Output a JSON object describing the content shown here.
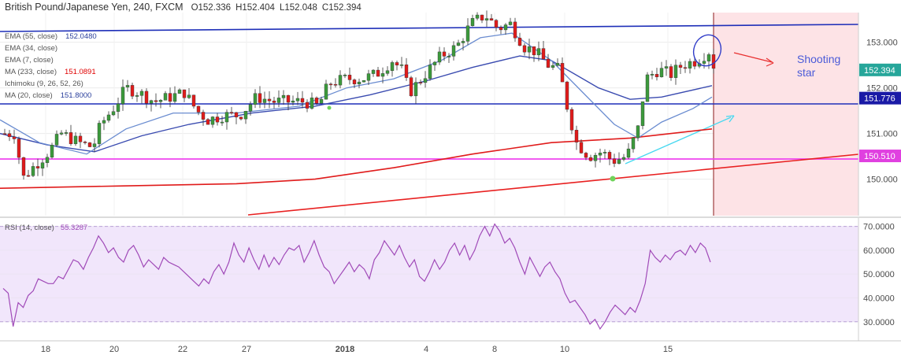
{
  "chart_data": [
    {
      "type": "candlestick",
      "header": {
        "symbol": "British Pound/Japanese Yen",
        "interval": "240",
        "source": "FXCM",
        "open": "O152.336",
        "high": "H152.404",
        "low": "L152.048",
        "close": "C152.394"
      },
      "indicators": [
        {
          "label": "EMA (55, close)",
          "value": "152.0480",
          "value_color": "#2a3f9c"
        },
        {
          "label": "EMA (34, close)",
          "value": "",
          "muted": true
        },
        {
          "label": "EMA (7, close)",
          "value": "",
          "muted": true
        },
        {
          "label": "MA (233, close)",
          "value": "151.0891",
          "value_color": "#e00000"
        },
        {
          "label": "Ichimoku (9, 26, 52, 26)",
          "value": "",
          "muted": true
        },
        {
          "label": "MA (20, close)",
          "value": "151.8000",
          "value_color": "#2a3f9c"
        }
      ],
      "ylim": [
        149.2,
        153.65
      ],
      "y_ticks": [
        "150.000",
        "151.000",
        "152.000",
        "153.000"
      ],
      "x_ticks": [
        "18",
        "20",
        "22",
        "27",
        "2018",
        "4",
        "8",
        "10",
        "15"
      ],
      "price_labels": [
        {
          "text": "152.394",
          "value": 152.394,
          "color": "#26a69a"
        },
        {
          "text": "151.776",
          "value": 151.776,
          "color": "#1a1aa6"
        },
        {
          "text": "150.510",
          "value": 150.51,
          "color": "#e040e0"
        }
      ],
      "annotation_text": [
        "Shooting",
        "star"
      ],
      "colors": {
        "up": "#3c9a3c",
        "down": "#e01b1b",
        "annotation": "#4a5bd8"
      }
    },
    {
      "type": "line",
      "label": "RSI (14, close)",
      "value": "55.3287",
      "ylim": [
        22,
        73.5
      ],
      "y_ticks": [
        "30.0000",
        "40.0000",
        "50.0000",
        "60.0000",
        "70.0000"
      ],
      "band": [
        30,
        70
      ],
      "values": [
        44,
        42,
        28,
        38,
        36,
        41,
        43,
        48,
        47,
        46,
        46,
        49,
        48,
        52,
        56,
        55,
        52,
        57,
        61,
        66,
        63,
        59,
        61,
        57,
        55,
        60,
        62,
        58,
        53,
        56,
        54,
        52,
        57,
        55,
        54,
        53,
        51,
        49,
        47,
        45,
        48,
        46,
        51,
        54,
        50,
        55,
        63,
        58,
        55,
        61,
        56,
        52,
        58,
        53,
        57,
        54,
        58,
        61,
        60,
        62,
        55,
        59,
        64,
        58,
        53,
        51,
        46,
        49,
        52,
        55,
        51,
        54,
        52,
        48,
        56,
        59,
        64,
        61,
        58,
        62,
        57,
        53,
        56,
        49,
        47,
        51,
        56,
        52,
        55,
        60,
        63,
        58,
        62,
        56,
        60,
        66,
        70,
        66,
        71,
        68,
        63,
        65,
        61,
        55,
        50,
        57,
        53,
        49,
        53,
        55,
        51,
        48,
        42,
        38,
        39,
        36,
        33,
        29,
        31,
        27,
        30,
        34,
        37,
        35,
        33,
        36,
        34,
        39,
        46,
        60,
        57,
        55,
        58,
        56,
        59,
        60,
        58,
        62,
        59,
        63,
        61,
        55
      ]
    }
  ]
}
